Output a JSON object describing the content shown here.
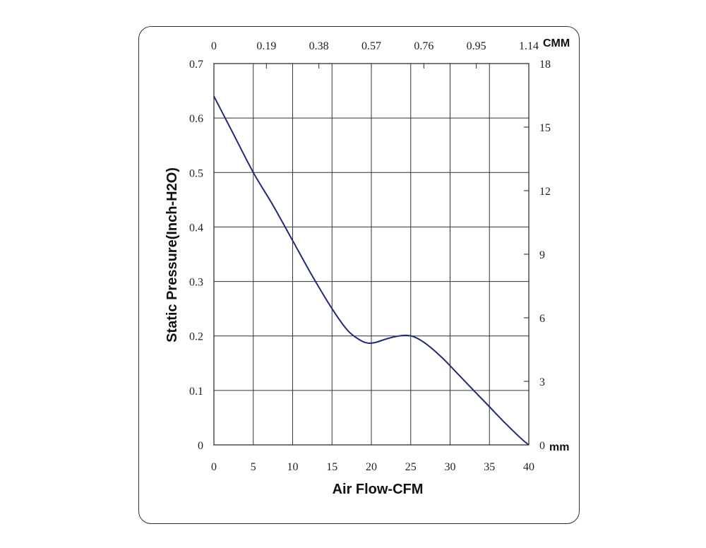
{
  "chart_data": {
    "type": "line",
    "xlabel": "Air Flow-CFM",
    "ylabel": "Static Pressure(Inch-H2O)",
    "xlim": [
      0,
      40
    ],
    "ylim": [
      0,
      0.7
    ],
    "x_ticks": [
      "0",
      "5",
      "10",
      "15",
      "20",
      "25",
      "30",
      "35",
      "40"
    ],
    "y_ticks": [
      "0",
      "0.1",
      "0.2",
      "0.3",
      "0.4",
      "0.5",
      "0.6",
      "0.7"
    ],
    "top_axis": {
      "unit": "CMM",
      "ticks": [
        "0",
        "0.19",
        "0.38",
        "0.57",
        "0.76",
        "0.95",
        "1.14"
      ]
    },
    "right_axis": {
      "unit": "mm",
      "ticks": [
        "0",
        "3",
        "6",
        "9",
        "12",
        "15",
        "18"
      ]
    },
    "grid": true,
    "series": [
      {
        "color": "#1f2a7a",
        "x": [
          0,
          2.5,
          5,
          7.5,
          10,
          12.5,
          15,
          17,
          18.5,
          19.5,
          20.5,
          22,
          23.5,
          24.5,
          25.5,
          27,
          29,
          31,
          33,
          35,
          37,
          39,
          40
        ],
        "y": [
          0.64,
          0.57,
          0.5,
          0.44,
          0.375,
          0.31,
          0.25,
          0.21,
          0.193,
          0.187,
          0.188,
          0.195,
          0.2,
          0.201,
          0.198,
          0.185,
          0.16,
          0.13,
          0.1,
          0.07,
          0.04,
          0.012,
          0.0
        ]
      }
    ]
  }
}
